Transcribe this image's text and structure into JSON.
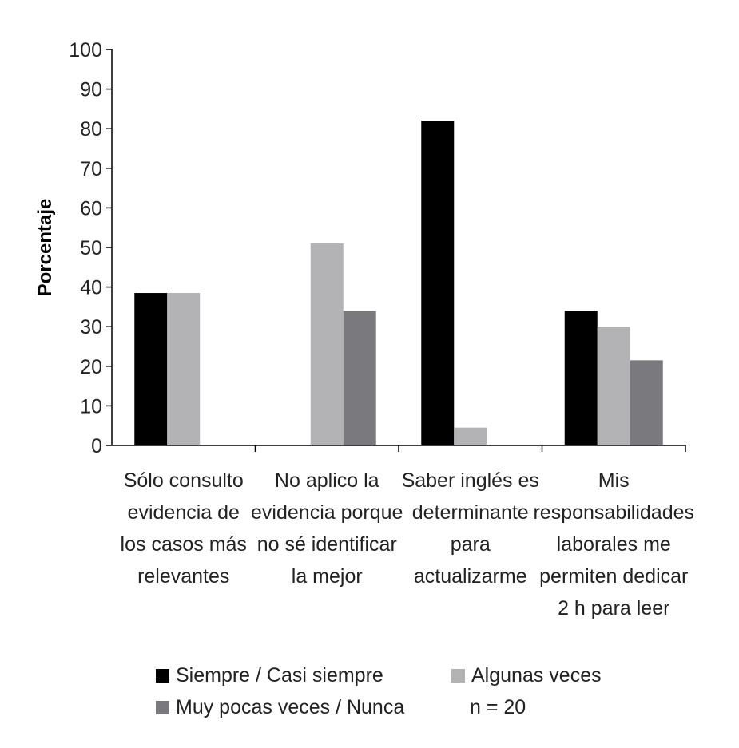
{
  "chart_data": {
    "type": "bar",
    "ylabel": "Porcentaje",
    "xlabel": "",
    "ylim": [
      0,
      100
    ],
    "yticks": [
      0,
      10,
      20,
      30,
      40,
      50,
      60,
      70,
      80,
      90,
      100
    ],
    "categories": [
      [
        "Sólo consulto",
        "evidencia de",
        "los casos más",
        "relevantes"
      ],
      [
        "No aplico la",
        "evidencia porque",
        "no sé identificar",
        "la mejor"
      ],
      [
        "Saber inglés es",
        "determinante",
        "para",
        "actualizarme"
      ],
      [
        "Mis",
        "responsabilidades",
        "laborales me",
        "permiten dedicar",
        "2 h para leer"
      ]
    ],
    "series": [
      {
        "name": "Siempre / Casi siempre",
        "color": "#000000",
        "values": [
          38.5,
          0,
          82,
          34
        ]
      },
      {
        "name": "Algunas veces",
        "color": "#b3b3b5",
        "values": [
          38.5,
          51,
          4.5,
          30
        ]
      },
      {
        "name": "Muy pocas veces / Nunca",
        "color": "#7a7a7e",
        "values": [
          0,
          34,
          0,
          21.5
        ]
      }
    ],
    "grid": false,
    "legend_position": "bottom",
    "annotation": "n = 20"
  }
}
